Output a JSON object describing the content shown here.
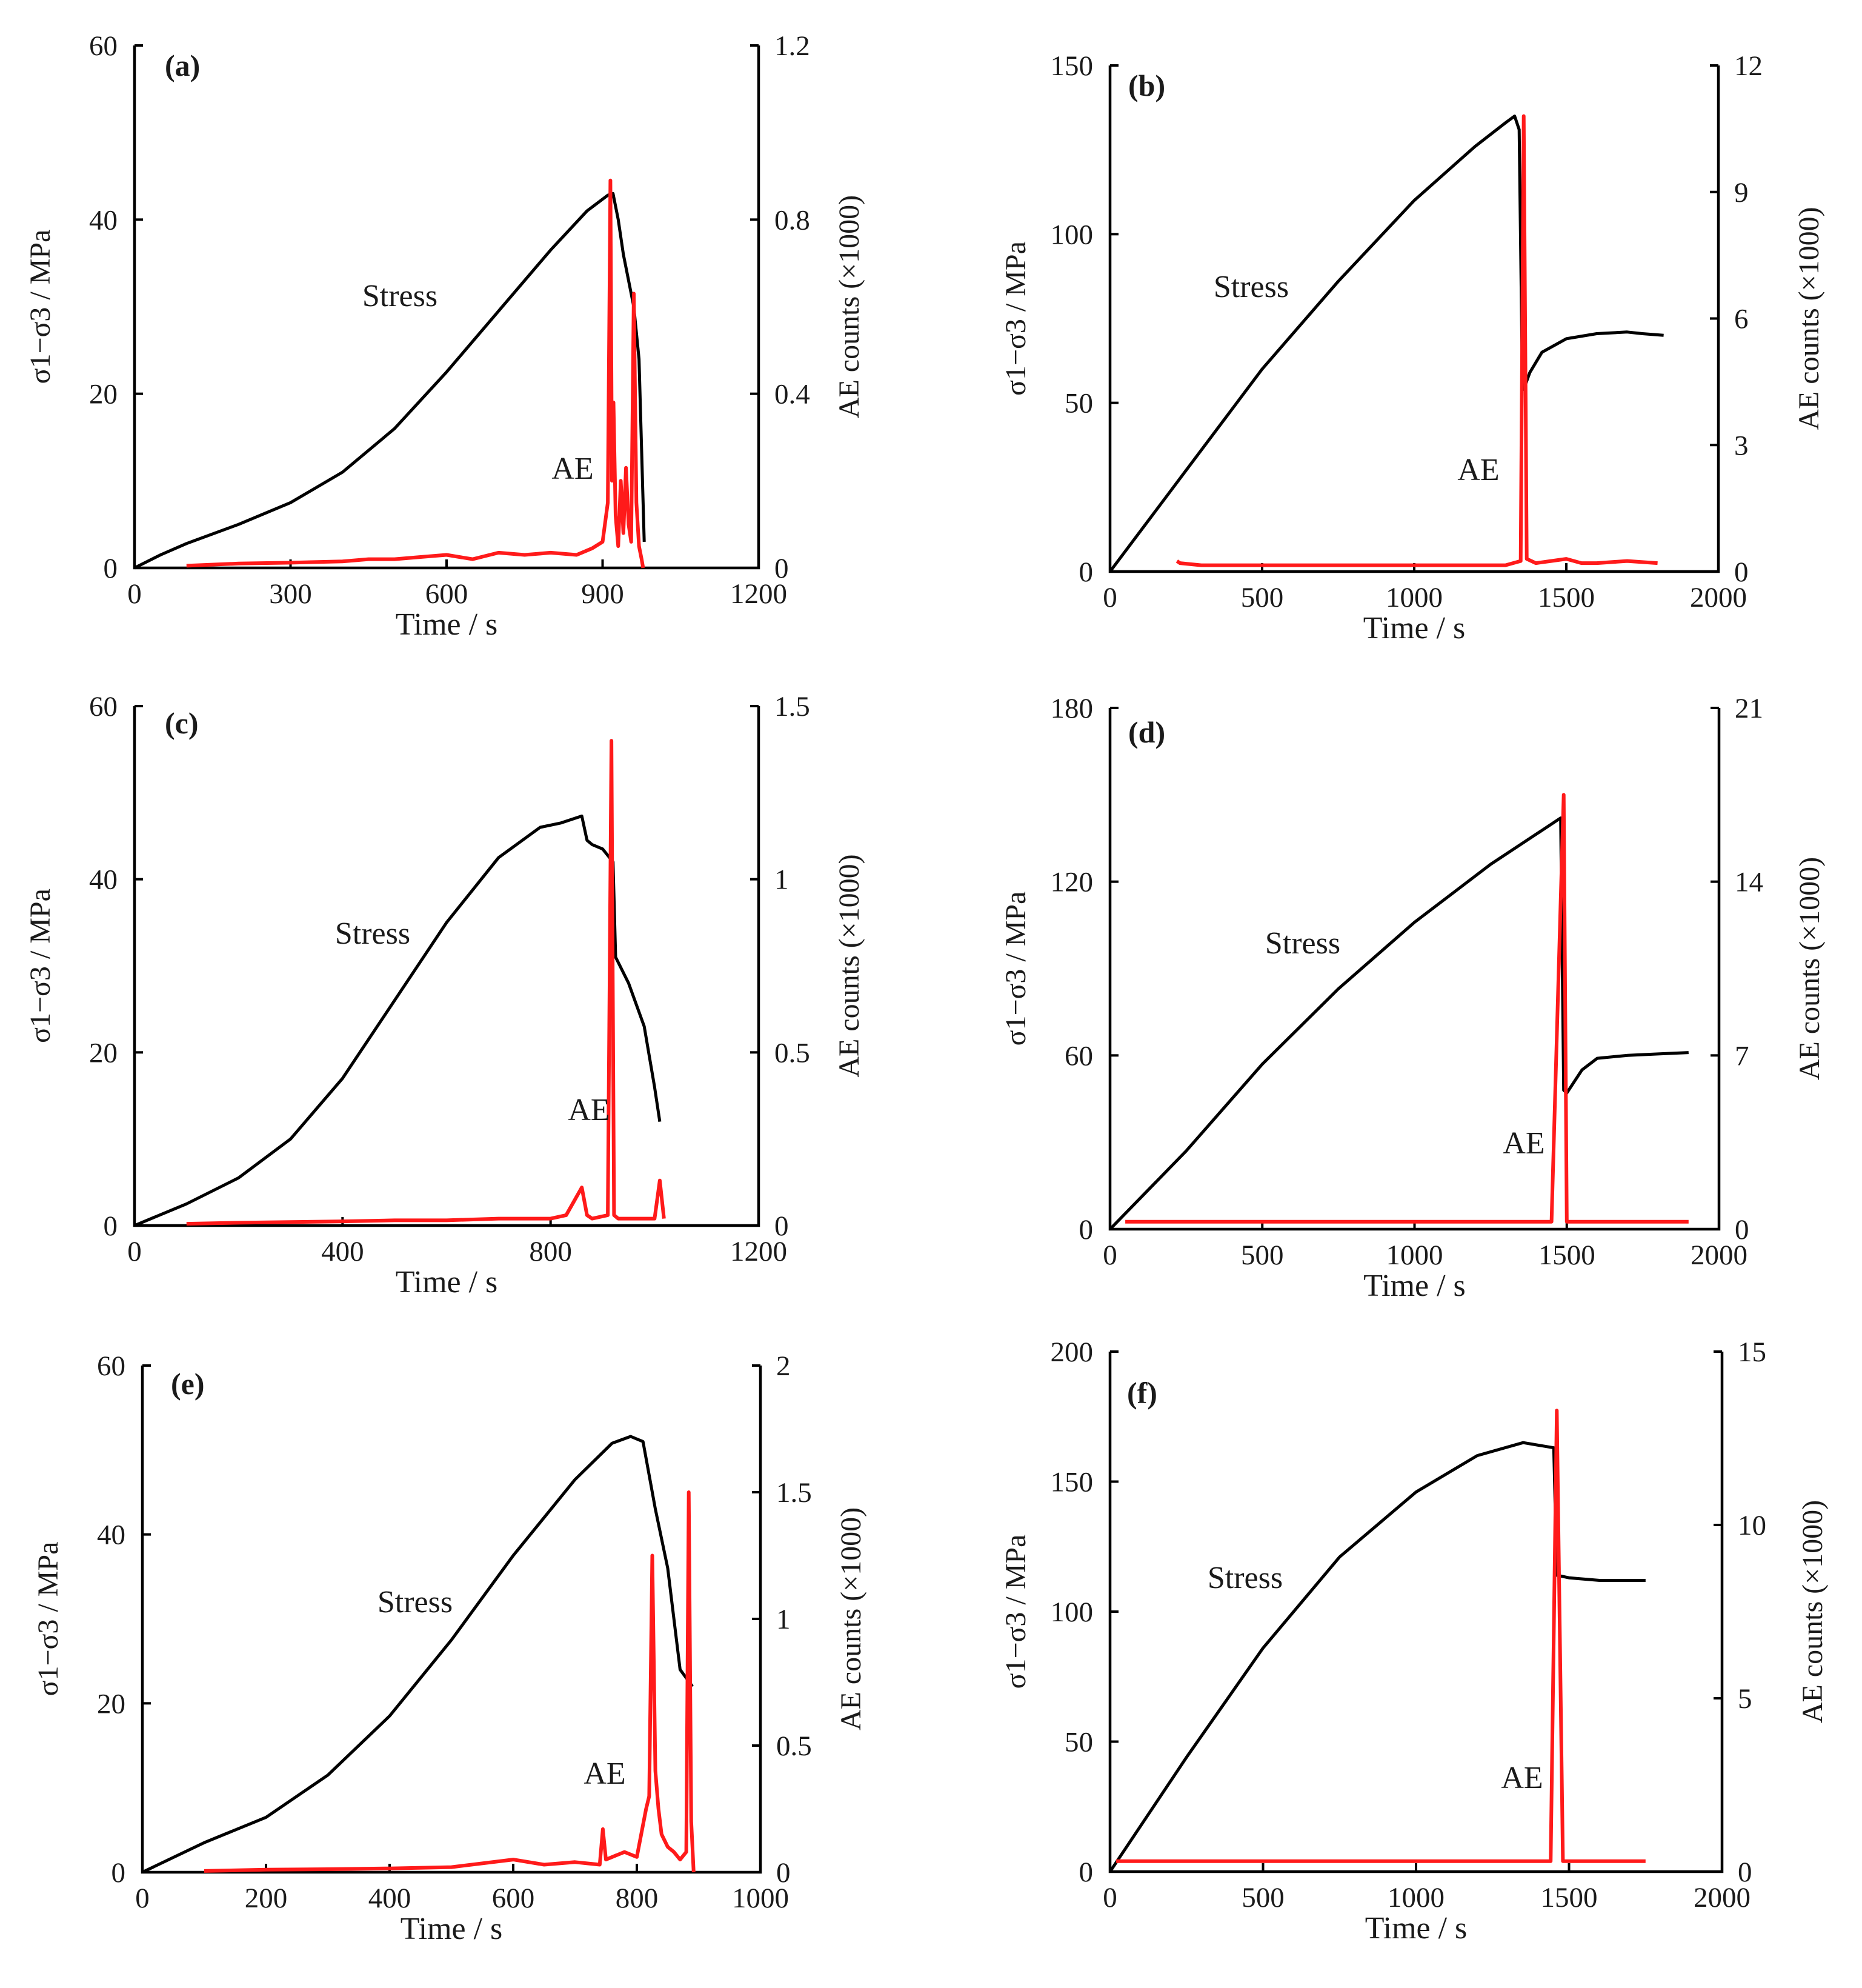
{
  "figure": {
    "background": "#ffffff",
    "stress_color": "#000000",
    "ae_color": "#ff1a1a"
  },
  "chart_data": [
    {
      "type": "line",
      "panel_label": "(a)",
      "xlabel": "Time / s",
      "ylabel_left": "σ1−σ3 / MPa",
      "ylabel_right": "AE counts (×1000)",
      "xlim": [
        0,
        1200
      ],
      "xticks": [
        0,
        300,
        600,
        900,
        1200
      ],
      "ylim_left": [
        0,
        60
      ],
      "yticks_left": [
        0,
        20,
        40,
        60
      ],
      "ylim_right": [
        0,
        1.2
      ],
      "yticks_right": [
        "0",
        "0.4",
        "0.8",
        "1.2"
      ],
      "annotations": [
        "Stress",
        "AE"
      ],
      "series": [
        {
          "name": "Stress",
          "axis": "left",
          "x": [
            0,
            50,
            100,
            200,
            300,
            400,
            500,
            600,
            700,
            800,
            870,
            910,
            920,
            930,
            940,
            950,
            960,
            970,
            980
          ],
          "y": [
            0,
            1.5,
            2.8,
            5,
            7.5,
            11,
            16,
            22.5,
            29.5,
            36.5,
            41,
            42.8,
            43,
            40,
            36,
            33,
            30,
            24,
            3
          ]
        },
        {
          "name": "AE",
          "axis": "right",
          "x": [
            100,
            200,
            300,
            400,
            450,
            500,
            550,
            600,
            650,
            700,
            750,
            800,
            850,
            880,
            900,
            910,
            915,
            918,
            921,
            925,
            930,
            935,
            940,
            945,
            950,
            955,
            960,
            965,
            970,
            975,
            978
          ],
          "y": [
            0.005,
            0.01,
            0.012,
            0.015,
            0.02,
            0.02,
            0.025,
            0.03,
            0.02,
            0.035,
            0.03,
            0.035,
            0.03,
            0.045,
            0.06,
            0.15,
            0.89,
            0.2,
            0.38,
            0.12,
            0.05,
            0.2,
            0.08,
            0.23,
            0.1,
            0.06,
            0.63,
            0.15,
            0.05,
            0.02,
            0.0
          ]
        }
      ]
    },
    {
      "type": "line",
      "panel_label": "(b)",
      "xlabel": "Time / s",
      "ylabel_left": "σ1−σ3 / MPa",
      "ylabel_right": "AE counts (×1000)",
      "xlim": [
        0,
        2000
      ],
      "xticks": [
        0,
        500,
        1000,
        1500,
        2000
      ],
      "ylim_left": [
        0,
        150
      ],
      "yticks_left": [
        0,
        50,
        100,
        150
      ],
      "ylim_right": [
        0,
        12
      ],
      "yticks_right": [
        "0",
        "3",
        "6",
        "9",
        "12"
      ],
      "annotations": [
        "Stress",
        "AE"
      ],
      "series": [
        {
          "name": "Stress",
          "axis": "left",
          "x": [
            0,
            250,
            500,
            750,
            1000,
            1200,
            1300,
            1330,
            1345,
            1355,
            1360,
            1380,
            1420,
            1500,
            1600,
            1700,
            1750,
            1820
          ],
          "y": [
            0,
            30,
            60,
            86,
            110,
            126,
            133,
            135,
            131,
            60,
            54,
            59,
            65,
            69,
            70.5,
            71,
            70.5,
            70
          ]
        },
        {
          "name": "AE",
          "axis": "right",
          "x": [
            220,
            230,
            300,
            400,
            500,
            600,
            700,
            800,
            900,
            1000,
            1100,
            1200,
            1300,
            1350,
            1360,
            1370,
            1400,
            1450,
            1500,
            1550,
            1600,
            1700,
            1800
          ],
          "y": [
            0.25,
            0.2,
            0.15,
            0.15,
            0.15,
            0.15,
            0.15,
            0.15,
            0.15,
            0.15,
            0.15,
            0.15,
            0.15,
            0.25,
            10.8,
            0.3,
            0.2,
            0.25,
            0.3,
            0.2,
            0.2,
            0.25,
            0.2
          ]
        }
      ]
    },
    {
      "type": "line",
      "panel_label": "(c)",
      "xlabel": "Time / s",
      "ylabel_left": "σ1−σ3 / MPa",
      "ylabel_right": "AE counts (×1000)",
      "xlim": [
        0,
        1200
      ],
      "xticks": [
        0,
        400,
        800,
        1200
      ],
      "ylim_left": [
        0,
        60
      ],
      "yticks_left": [
        0,
        20,
        40,
        60
      ],
      "ylim_right": [
        0,
        1.5
      ],
      "yticks_right": [
        "0",
        "0.5",
        "1",
        "1.5"
      ],
      "annotations": [
        "Stress",
        "AE"
      ],
      "series": [
        {
          "name": "Stress",
          "axis": "left",
          "x": [
            0,
            100,
            200,
            300,
            400,
            500,
            600,
            700,
            780,
            820,
            860,
            870,
            880,
            900,
            920,
            925,
            950,
            980,
            1000,
            1010
          ],
          "y": [
            0,
            2.5,
            5.5,
            10,
            17,
            26,
            35,
            42.5,
            46,
            46.5,
            47.3,
            44.5,
            44,
            43.5,
            42,
            31,
            28,
            23,
            16,
            12
          ]
        },
        {
          "name": "AE",
          "axis": "right",
          "x": [
            100,
            200,
            300,
            400,
            500,
            600,
            700,
            750,
            800,
            830,
            860,
            870,
            880,
            910,
            917,
            922,
            930,
            960,
            1000,
            1010,
            1018
          ],
          "y": [
            0.005,
            0.008,
            0.01,
            0.012,
            0.015,
            0.015,
            0.02,
            0.02,
            0.02,
            0.03,
            0.11,
            0.03,
            0.02,
            0.03,
            1.4,
            0.03,
            0.02,
            0.02,
            0.02,
            0.13,
            0.02
          ]
        }
      ]
    },
    {
      "type": "line",
      "panel_label": "(d)",
      "xlabel": "Time / s",
      "ylabel_left": "σ1−σ3 / MPa",
      "ylabel_right": "AE counts (×1000)",
      "xlim": [
        0,
        2000
      ],
      "xticks": [
        0,
        500,
        1000,
        1500,
        2000
      ],
      "ylim_left": [
        0,
        180
      ],
      "yticks_left": [
        0,
        60,
        120,
        180
      ],
      "ylim_right": [
        0,
        21
      ],
      "yticks_right": [
        "0",
        "7",
        "14",
        "21"
      ],
      "annotations": [
        "Stress",
        "AE"
      ],
      "series": [
        {
          "name": "Stress",
          "axis": "left",
          "x": [
            0,
            250,
            500,
            750,
            1000,
            1250,
            1480,
            1490,
            1500,
            1550,
            1600,
            1700,
            1800,
            1900
          ],
          "y": [
            0,
            27,
            57,
            83,
            106,
            126,
            142,
            48,
            47,
            55,
            59,
            60,
            60.5,
            61
          ]
        },
        {
          "name": "AE",
          "axis": "right",
          "x": [
            50,
            100,
            200,
            300,
            400,
            500,
            600,
            700,
            800,
            900,
            1000,
            1100,
            1200,
            1300,
            1400,
            1450,
            1490,
            1500,
            1550,
            1600,
            1700,
            1800,
            1900
          ],
          "y": [
            0.3,
            0.3,
            0.3,
            0.3,
            0.3,
            0.3,
            0.3,
            0.3,
            0.3,
            0.3,
            0.3,
            0.3,
            0.3,
            0.3,
            0.3,
            0.3,
            17.5,
            0.3,
            0.3,
            0.3,
            0.3,
            0.3,
            0.3
          ]
        }
      ]
    },
    {
      "type": "line",
      "panel_label": "(e)",
      "xlabel": "Time / s",
      "ylabel_left": "σ1−σ3 / MPa",
      "ylabel_right": "AE counts (×1000)",
      "xlim": [
        0,
        1000
      ],
      "xticks": [
        0,
        200,
        400,
        600,
        800,
        1000
      ],
      "ylim_left": [
        0,
        60
      ],
      "yticks_left": [
        0,
        20,
        40,
        60
      ],
      "ylim_right": [
        0,
        2
      ],
      "yticks_right": [
        "0",
        "0.5",
        "1",
        "1.5",
        "2"
      ],
      "annotations": [
        "Stress",
        "AE"
      ],
      "series": [
        {
          "name": "Stress",
          "axis": "left",
          "x": [
            0,
            100,
            200,
            300,
            400,
            500,
            600,
            700,
            760,
            790,
            810,
            820,
            830,
            850,
            860,
            870,
            880,
            890
          ],
          "y": [
            0,
            3.5,
            6.5,
            11.5,
            18.5,
            27.5,
            37.5,
            46.5,
            50.8,
            51.6,
            51,
            47,
            43,
            36,
            30,
            24,
            23,
            22
          ]
        },
        {
          "name": "AE",
          "axis": "right",
          "x": [
            100,
            200,
            300,
            400,
            500,
            600,
            650,
            700,
            740,
            745,
            750,
            780,
            800,
            815,
            820,
            825,
            830,
            835,
            840,
            850,
            860,
            870,
            880,
            884,
            888,
            892
          ],
          "y": [
            0.005,
            0.01,
            0.012,
            0.015,
            0.02,
            0.05,
            0.03,
            0.04,
            0.03,
            0.17,
            0.05,
            0.08,
            0.06,
            0.25,
            0.3,
            1.25,
            0.4,
            0.25,
            0.15,
            0.1,
            0.08,
            0.05,
            0.08,
            1.5,
            0.2,
            0.0
          ]
        }
      ]
    },
    {
      "type": "line",
      "panel_label": "(f)",
      "xlabel": "Time / s",
      "ylabel_left": "σ1−σ3 / MPa",
      "ylabel_right": "AE counts (×1000)",
      "xlim": [
        0,
        2000
      ],
      "xticks": [
        0,
        500,
        1000,
        1500,
        2000
      ],
      "ylim_left": [
        0,
        200
      ],
      "yticks_left": [
        0,
        50,
        100,
        150,
        200
      ],
      "ylim_right": [
        0,
        15
      ],
      "yticks_right": [
        "0",
        "5",
        "10",
        "15"
      ],
      "annotations": [
        "Stress",
        "AE"
      ],
      "series": [
        {
          "name": "Stress",
          "axis": "left",
          "x": [
            0,
            250,
            500,
            750,
            1000,
            1200,
            1350,
            1450,
            1460,
            1500,
            1600,
            1700,
            1750
          ],
          "y": [
            0,
            44,
            86,
            121,
            146,
            160,
            165,
            163,
            114,
            113,
            112,
            112,
            112
          ]
        },
        {
          "name": "AE",
          "axis": "right",
          "x": [
            20,
            60,
            100,
            150,
            200,
            250,
            300,
            400,
            500,
            600,
            700,
            800,
            900,
            1000,
            1100,
            1200,
            1300,
            1350,
            1400,
            1440,
            1460,
            1480,
            1550,
            1650,
            1750
          ],
          "y": [
            0.3,
            0.3,
            0.3,
            0.3,
            0.3,
            0.3,
            0.3,
            0.3,
            0.3,
            0.3,
            0.3,
            0.3,
            0.3,
            0.3,
            0.3,
            0.3,
            0.3,
            0.3,
            0.3,
            0.3,
            13.3,
            0.3,
            0.3,
            0.3,
            0.3
          ]
        }
      ]
    }
  ]
}
